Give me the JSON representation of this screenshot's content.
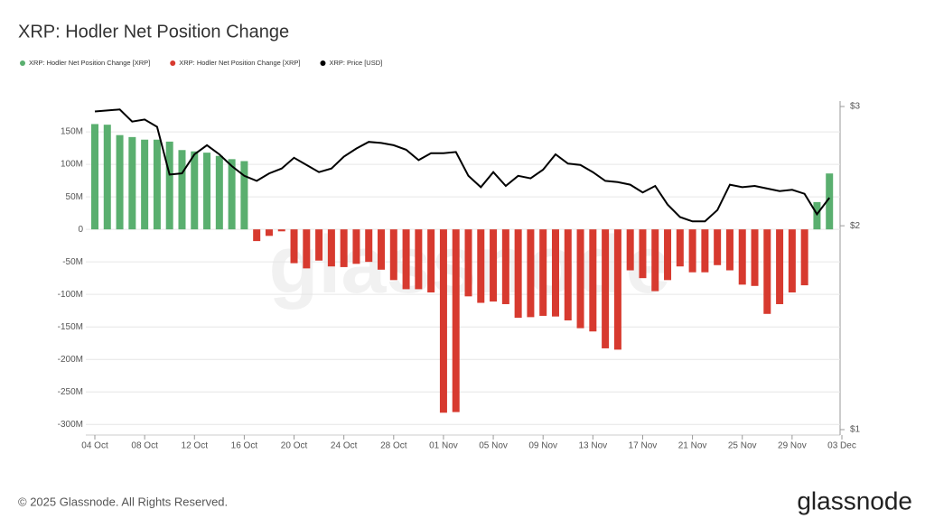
{
  "chart_data": {
    "type": "bar",
    "title": "XRP: Hodler Net Position Change",
    "watermark": "glassnode",
    "copyright": "© 2025 Glassnode. All Rights Reserved.",
    "brand": "glassnode",
    "categories": [
      "04 Oct",
      null,
      null,
      null,
      "08 Oct",
      null,
      null,
      null,
      "12 Oct",
      null,
      null,
      null,
      "16 Oct",
      null,
      null,
      null,
      "20 Oct",
      null,
      null,
      null,
      "24 Oct",
      null,
      null,
      null,
      "28 Oct",
      null,
      null,
      null,
      "01 Nov",
      null,
      null,
      null,
      "05 Nov",
      null,
      null,
      null,
      "09 Nov",
      null,
      null,
      null,
      "13 Nov",
      null,
      null,
      null,
      "17 Nov",
      null,
      null,
      null,
      "21 Nov",
      null,
      null,
      null,
      "25 Nov",
      null,
      null,
      null,
      "29 Nov",
      null,
      null,
      null,
      "03 Dec"
    ],
    "series": [
      {
        "name": "XRP: Hodler Net Position Change [XRP]",
        "type": "bar",
        "color": "#5aaf6f",
        "values": [
          162,
          161,
          145,
          142,
          138,
          138,
          135,
          122,
          120,
          118,
          113,
          108,
          105,
          null,
          null,
          null,
          null,
          null,
          null,
          null,
          null,
          null,
          null,
          null,
          null,
          null,
          null,
          null,
          null,
          null,
          null,
          null,
          null,
          null,
          null,
          null,
          null,
          null,
          null,
          null,
          null,
          null,
          null,
          null,
          null,
          null,
          null,
          null,
          null,
          null,
          null,
          null,
          null,
          null,
          null,
          null,
          null,
          null,
          42,
          86,
          null
        ]
      },
      {
        "name": "XRP: Hodler Net Position Change [XRP]",
        "type": "bar",
        "color": "#d73a2f",
        "values": [
          null,
          null,
          null,
          null,
          null,
          null,
          null,
          null,
          null,
          null,
          null,
          null,
          null,
          -18,
          -10,
          -3,
          -52,
          -60,
          -48,
          -57,
          -58,
          -53,
          -50,
          -62,
          -78,
          -92,
          -92,
          -97,
          -282,
          -281,
          -103,
          -113,
          -111,
          -115,
          -136,
          -135,
          -133,
          -134,
          -140,
          -152,
          -157,
          -183,
          -185,
          -63,
          -75,
          -95,
          -78,
          -57,
          -66,
          -66,
          -55,
          -63,
          -85,
          -87,
          -130,
          -115,
          -97,
          -86,
          null,
          null,
          null
        ]
      },
      {
        "name": "XRP: Price [USD]",
        "type": "line",
        "color": "#000000",
        "axis": "y2",
        "values": [
          2.95,
          2.96,
          2.97,
          2.85,
          2.87,
          2.8,
          2.38,
          2.39,
          2.55,
          2.63,
          2.55,
          2.45,
          2.37,
          2.33,
          2.39,
          2.43,
          2.52,
          2.46,
          2.4,
          2.43,
          2.53,
          2.6,
          2.66,
          2.65,
          2.63,
          2.59,
          2.5,
          2.56,
          2.56,
          2.57,
          2.37,
          2.28,
          2.4,
          2.29,
          2.37,
          2.35,
          2.42,
          2.55,
          2.47,
          2.46,
          2.4,
          2.33,
          2.32,
          2.3,
          2.24,
          2.29,
          2.15,
          2.06,
          2.03,
          2.03,
          2.11,
          2.3,
          2.28,
          2.29,
          2.27,
          2.25,
          2.26,
          2.23,
          2.08,
          2.2,
          null
        ]
      }
    ],
    "ylim": [
      -308,
      189
    ],
    "yticks": [
      {
        "value": 150,
        "label": "150M"
      },
      {
        "value": 100,
        "label": "100M"
      },
      {
        "value": 50,
        "label": "50M"
      },
      0,
      {
        "value": -50,
        "label": "-50M"
      },
      {
        "value": -100,
        "label": "-100M"
      },
      {
        "value": -150,
        "label": "-150M"
      },
      {
        "value": -200,
        "label": "-200M"
      },
      {
        "value": -250,
        "label": "-250M"
      },
      {
        "value": -300,
        "label": "-300M"
      }
    ],
    "y2lim": [
      1,
      3
    ],
    "y2scale": "log",
    "y2ticks": [
      {
        "value": 3,
        "label": "$3"
      },
      {
        "value": 2,
        "label": "$2"
      },
      {
        "value": 1,
        "label": "$1"
      }
    ],
    "grid": true
  }
}
